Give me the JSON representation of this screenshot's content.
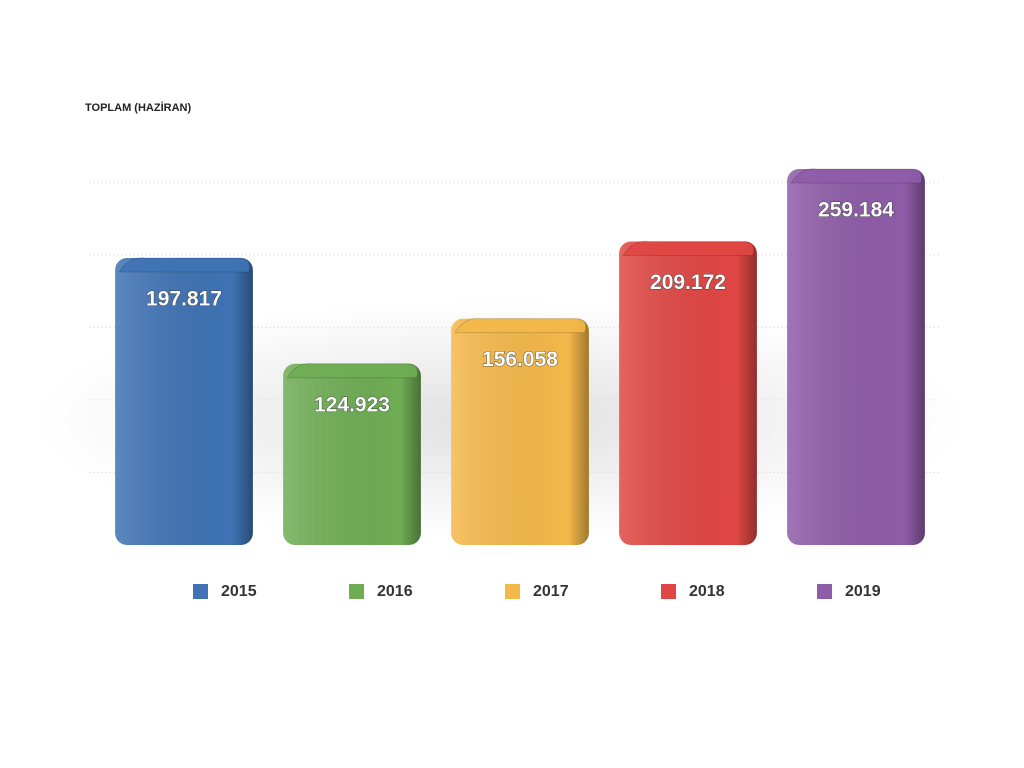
{
  "chart_data": {
    "type": "bar",
    "title": "TOPLAM (HAZİRAN)",
    "categories": [
      "2015",
      "2016",
      "2017",
      "2018",
      "2019"
    ],
    "values": [
      197817,
      124923,
      156058,
      209172,
      259184
    ],
    "value_labels": [
      "197.817",
      "124.923",
      "156.058",
      "209.172",
      "259.184"
    ],
    "colors": [
      "#3f73b4",
      "#6fad55",
      "#f4b84a",
      "#e04744",
      "#8e5ca8"
    ],
    "ylim": [
      0,
      275000
    ],
    "yticks": [
      0,
      50000,
      100000,
      150000,
      200000,
      250000
    ],
    "grid": true
  }
}
